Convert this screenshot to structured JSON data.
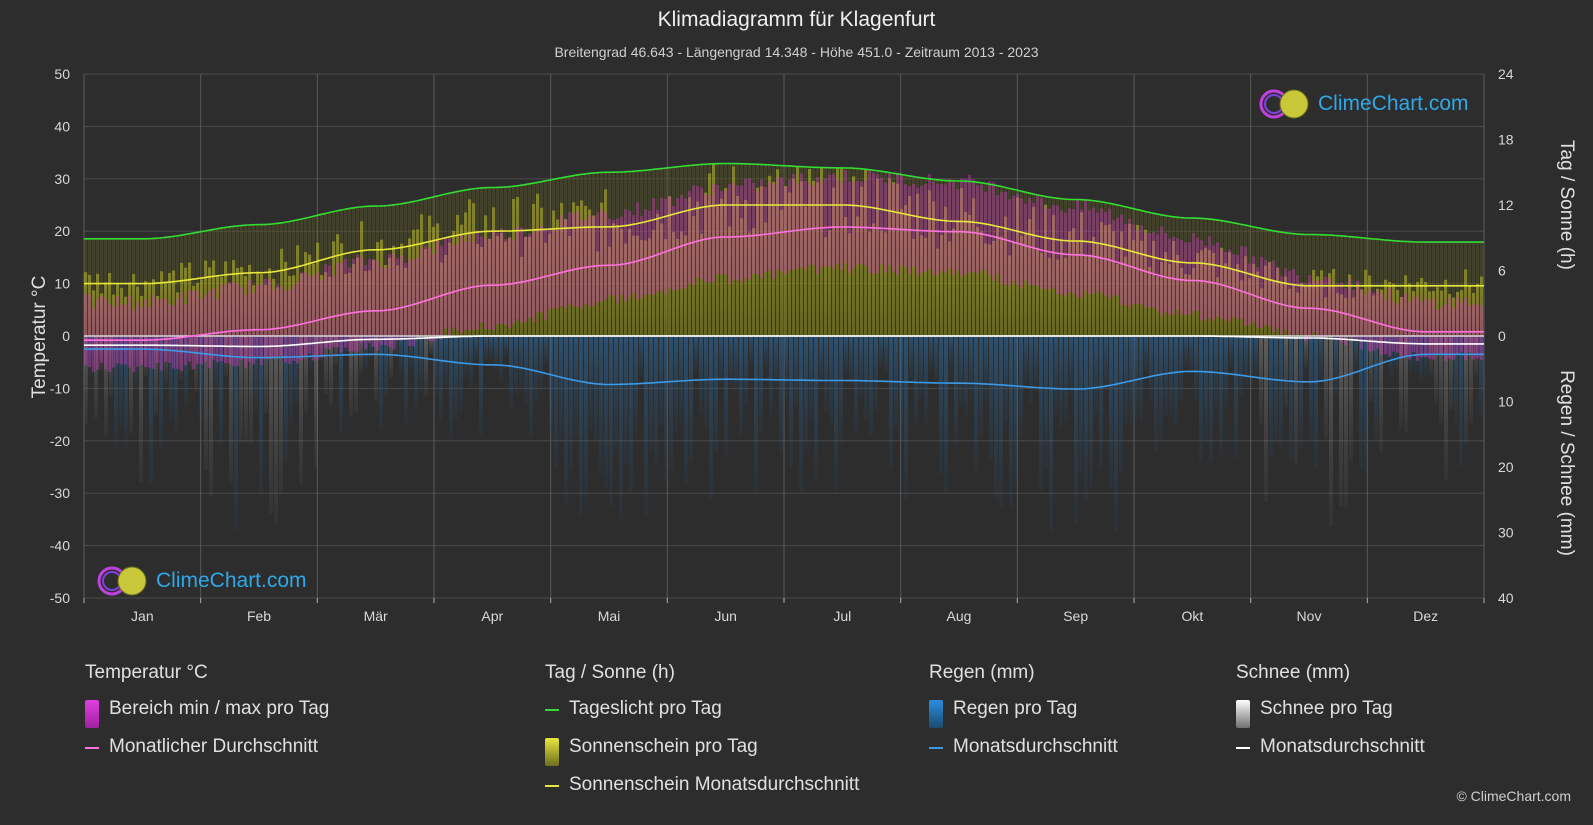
{
  "title": "Klimadiagramm für Klagenfurt",
  "subtitle": "Breitengrad 46.643 - Längengrad 14.348 - Höhe 451.0 - Zeitraum 2013 - 2023",
  "axes": {
    "left_title": "Temperatur °C",
    "right_top_title": "Tag / Sonne (h)",
    "right_bottom_title": "Regen / Schnee (mm)"
  },
  "brand": {
    "name": "ClimeChart.com",
    "copyright": "© ClimeChart.com"
  },
  "legend": {
    "temperature": {
      "title": "Temperatur °C",
      "range_label": "Bereich min / max pro Tag",
      "avg_label": "Monatlicher Durchschnitt"
    },
    "sun": {
      "title": "Tag / Sonne (h)",
      "daylight_label": "Tageslicht pro Tag",
      "sunshine_label": "Sonnenschein pro Tag",
      "sunshine_avg_label": "Sonnenschein Monatsdurchschnitt"
    },
    "rain": {
      "title": "Regen (mm)",
      "rain_label": "Regen pro Tag",
      "avg_label": "Monatsdurchschnitt"
    },
    "snow": {
      "title": "Schnee (mm)",
      "snow_label": "Schnee pro Tag",
      "avg_label": "Monatsdurchschnitt"
    }
  },
  "colors": {
    "background": "#2d2d2d",
    "grid": "#4a4a4a",
    "daylight": "#33dd33",
    "sunshine_fill": "#8c8c2a",
    "sunshine_avg": "#e8e83a",
    "temp_range": "#d040c0",
    "temp_avg": "#ff70e0",
    "rain": "#2a7fc0",
    "rain_avg": "#3a9ae8",
    "snow_avg": "#ffffff",
    "brand": "#2fa8e8"
  },
  "chart_data": {
    "type": "line",
    "categories": [
      "Jan",
      "Feb",
      "Mär",
      "Apr",
      "Mai",
      "Jun",
      "Jul",
      "Aug",
      "Sep",
      "Okt",
      "Nov",
      "Dez"
    ],
    "left_axis": {
      "label": "Temperatur °C",
      "ylim": [
        -50,
        50
      ],
      "ticks": [
        50,
        40,
        30,
        20,
        10,
        0,
        -10,
        -20,
        -30,
        -40,
        -50
      ]
    },
    "right_axis_top": {
      "label": "Tag / Sonne (h)",
      "ylim": [
        0,
        24
      ],
      "ticks": [
        24,
        18,
        12,
        6,
        0
      ]
    },
    "right_axis_bottom": {
      "label": "Regen / Schnee (mm)",
      "ylim": [
        0,
        40
      ],
      "ticks": [
        0,
        10,
        20,
        30,
        40
      ]
    },
    "series": [
      {
        "name": "Tageslicht pro Tag",
        "unit": "h",
        "values": [
          8.9,
          10.2,
          11.9,
          13.6,
          15.0,
          15.8,
          15.4,
          14.2,
          12.5,
          10.8,
          9.3,
          8.6
        ]
      },
      {
        "name": "Sonnenschein Monatsdurchschnitt",
        "unit": "h",
        "values": [
          4.8,
          5.8,
          7.9,
          9.6,
          10.0,
          12.0,
          12.0,
          10.5,
          8.7,
          6.7,
          4.6,
          4.6
        ]
      },
      {
        "name": "Monatlicher Durchschnitt",
        "unit": "°C",
        "values": [
          -0.8,
          1.2,
          4.8,
          9.7,
          13.5,
          18.9,
          20.8,
          19.9,
          15.5,
          10.6,
          5.3,
          0.8
        ]
      },
      {
        "name": "Regen Monatsdurchschnitt",
        "unit": "mm",
        "values": [
          2.0,
          3.3,
          2.8,
          4.4,
          7.4,
          6.6,
          6.8,
          7.2,
          8.1,
          5.4,
          7.0,
          2.8
        ]
      },
      {
        "name": "Schnee Monatsdurchschnitt",
        "unit": "mm",
        "values": [
          1.4,
          1.6,
          0.5,
          0.0,
          0.0,
          0.0,
          0.0,
          0.0,
          0.0,
          0.0,
          0.3,
          1.2
        ]
      }
    ],
    "temperature_daily_range_monthly": [
      {
        "month": "Jan",
        "min": -5,
        "max": 5
      },
      {
        "month": "Feb",
        "min": -4,
        "max": 8
      },
      {
        "month": "Mär",
        "min": -1,
        "max": 13
      },
      {
        "month": "Apr",
        "min": 3,
        "max": 18
      },
      {
        "month": "Mai",
        "min": 8,
        "max": 22
      },
      {
        "month": "Jun",
        "min": 12,
        "max": 27
      },
      {
        "month": "Jul",
        "min": 14,
        "max": 29
      },
      {
        "month": "Aug",
        "min": 13,
        "max": 28
      },
      {
        "month": "Sep",
        "min": 9,
        "max": 23
      },
      {
        "month": "Okt",
        "min": 5,
        "max": 17
      },
      {
        "month": "Nov",
        "min": 1,
        "max": 10
      },
      {
        "month": "Dez",
        "min": -3,
        "max": 5
      }
    ],
    "grid": true
  }
}
